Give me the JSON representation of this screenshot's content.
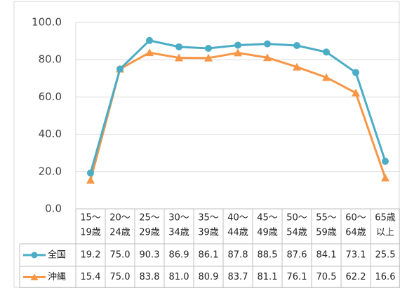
{
  "chart_data": {
    "type": "line",
    "categories": [
      [
        "15～",
        "19歳"
      ],
      [
        "20～",
        "24歳"
      ],
      [
        "25～",
        "29歳"
      ],
      [
        "30～",
        "34歳"
      ],
      [
        "35～",
        "39歳"
      ],
      [
        "40～",
        "44歳"
      ],
      [
        "45～",
        "49歳"
      ],
      [
        "50～",
        "54歳"
      ],
      [
        "55～",
        "59歳"
      ],
      [
        "60～",
        "64歳"
      ],
      [
        "65歳",
        "以上"
      ]
    ],
    "series": [
      {
        "name": "全国",
        "color": "#4bacc6",
        "marker": "circle",
        "values": [
          19.2,
          75.0,
          90.3,
          86.9,
          86.1,
          87.8,
          88.5,
          87.6,
          84.1,
          73.1,
          25.5
        ],
        "value_labels": [
          "19.2",
          "75.0",
          "90.3",
          "86.9",
          "86.1",
          "87.8",
          "88.5",
          "87.6",
          "84.1",
          "73.1",
          "25.5"
        ]
      },
      {
        "name": "沖縄",
        "color": "#f79646",
        "marker": "triangle",
        "values": [
          15.4,
          75.0,
          83.8,
          81.0,
          80.9,
          83.7,
          81.1,
          76.1,
          70.5,
          62.2,
          16.6
        ],
        "value_labels": [
          "15.4",
          "75.0",
          "83.8",
          "81.0",
          "80.9",
          "83.7",
          "81.1",
          "76.1",
          "70.5",
          "62.2",
          "16.6"
        ]
      }
    ],
    "ylim": [
      0,
      100
    ],
    "yticks": [
      {
        "value": 0,
        "label": "0.0"
      },
      {
        "value": 20,
        "label": "20.0"
      },
      {
        "value": 40,
        "label": "40.0"
      },
      {
        "value": 60,
        "label": "60.0"
      },
      {
        "value": 80,
        "label": "80.0"
      },
      {
        "value": 100,
        "label": "100.0"
      }
    ],
    "grid": true
  }
}
